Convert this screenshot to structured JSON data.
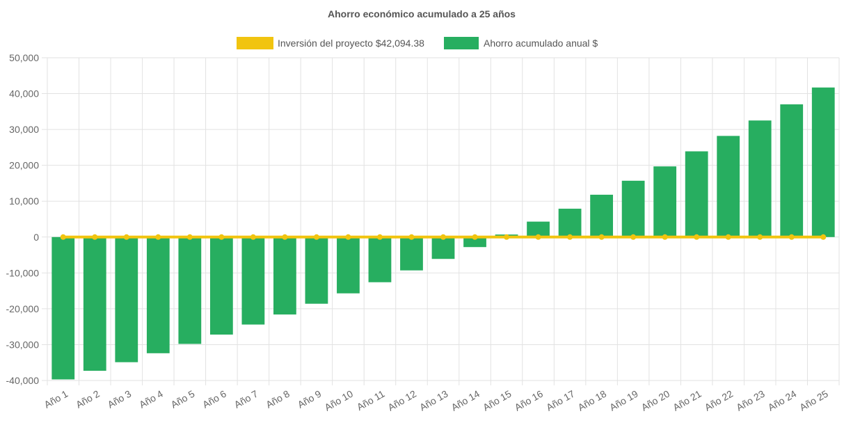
{
  "chart_data": {
    "type": "bar",
    "title": "Ahorro económico acumulado a 25 años",
    "xlabel": "",
    "ylabel": "",
    "categories": [
      "Año 1",
      "Año 2",
      "Año 3",
      "Año 4",
      "Año 5",
      "Año 6",
      "Año 7",
      "Año 8",
      "Año 9",
      "Año 10",
      "Año 11",
      "Año 12",
      "Año 13",
      "Año 14",
      "Año 15",
      "Año 16",
      "Año 17",
      "Año 18",
      "Año 19",
      "Año 20",
      "Año 21",
      "Año 22",
      "Año 23",
      "Año 24",
      "Año 25"
    ],
    "ylim": [
      -40000,
      50000
    ],
    "yticks": [
      50000,
      40000,
      30000,
      20000,
      10000,
      0,
      -10000,
      -20000,
      -30000,
      -40000
    ],
    "ytick_labels": [
      "50,000",
      "40,000",
      "30,000",
      "20,000",
      "10,000",
      "0",
      "-10,000",
      "-20,000",
      "-30,000",
      "-40,000"
    ],
    "grid": true,
    "legend_position": "top",
    "series": [
      {
        "name": "Inversión del proyecto $42,094.38",
        "type": "line",
        "color": "#f1c40f",
        "values": [
          0,
          0,
          0,
          0,
          0,
          0,
          0,
          0,
          0,
          0,
          0,
          0,
          0,
          0,
          0,
          0,
          0,
          0,
          0,
          0,
          0,
          0,
          0,
          0,
          0
        ]
      },
      {
        "name": "Ahorro acumulado anual $",
        "type": "bar",
        "color": "#27ae60",
        "values": [
          -39700,
          -37300,
          -34900,
          -32400,
          -29800,
          -27200,
          -24400,
          -21600,
          -18600,
          -15700,
          -12600,
          -9300,
          -6100,
          -2800,
          700,
          4300,
          7900,
          11800,
          15700,
          19700,
          23900,
          28200,
          32500,
          37000,
          41700
        ]
      }
    ]
  }
}
